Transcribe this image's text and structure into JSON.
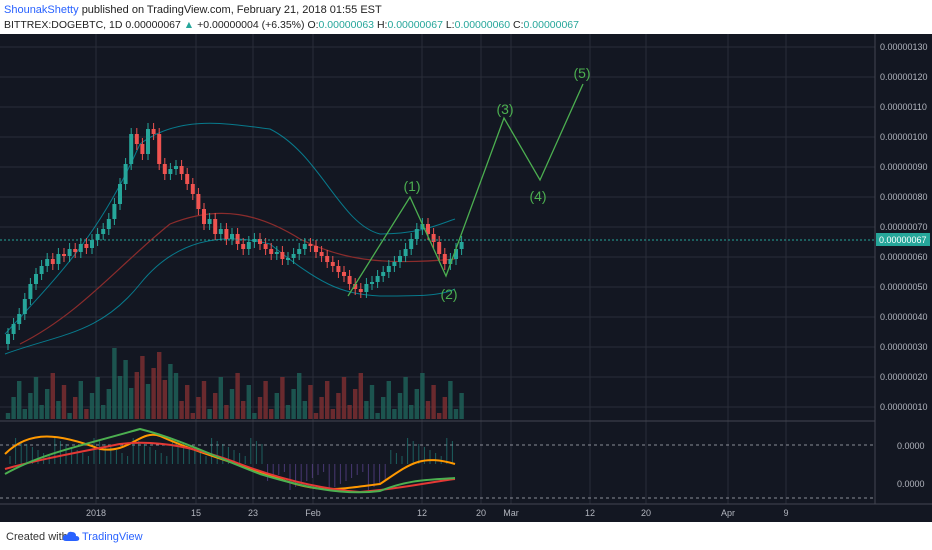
{
  "header": {
    "author": "ShounakShetty",
    "published": "published on TradingView.com, February 21, 2018 01:55 EST",
    "symbol": "BITTREX:DOGEBTC, 1D",
    "last": "0.00000067",
    "arrow": "▲",
    "change": "+0.00000004 (+6.35%)",
    "o_label": "O:",
    "o": "0.00000063",
    "h_label": "H:",
    "h": "0.00000067",
    "l_label": "L:",
    "l": "0.00000060",
    "c_label": "C:",
    "c": "0.00000067"
  },
  "price_axis": [
    "0.00000130",
    "0.00000120",
    "0.00000110",
    "0.00000100",
    "0.00000090",
    "0.00000080",
    "0.00000070",
    "0.00000060",
    "0.00000050",
    "0.00000040",
    "0.00000030",
    "0.00000020",
    "0.00000010"
  ],
  "price_tag": "0.00000067",
  "indicator_axis": [
    "0.0000",
    "0.0000"
  ],
  "time_axis": [
    "2018",
    "15",
    "23",
    "Feb",
    "12",
    "20",
    "Mar",
    "12",
    "20",
    "Apr",
    "9"
  ],
  "wave_labels": [
    "(1)",
    "(2)",
    "(3)",
    "(4)",
    "(5)"
  ],
  "footer": {
    "created_with": "Created with",
    "brand": "TradingView"
  },
  "colors": {
    "background": "#131722",
    "bull": "#26a69a",
    "bear": "#ef5350",
    "wave": "#4caf50",
    "bollinger": "#00bcd4",
    "ma": "#8b2c2c",
    "grid": "#2a2e39",
    "axis_text": "#b2b5be",
    "macd": "#ff9800",
    "signal": "#e53935",
    "rsi": "#4caf50",
    "tag": "#26a69a"
  }
}
